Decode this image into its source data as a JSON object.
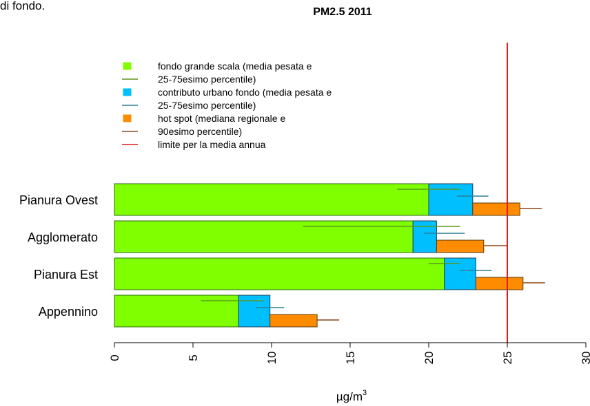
{
  "page_fragment_text": "di fondo.",
  "chart_data": {
    "type": "bar",
    "orientation": "horizontal",
    "stacked": true,
    "title": "PM2.5 2011",
    "xlabel": "µg/m",
    "xlabel_superscript": "3",
    "xlim": [
      0,
      30
    ],
    "xticks": [
      0,
      5,
      10,
      15,
      20,
      25,
      30
    ],
    "xtick_labels": [
      "0",
      "5",
      "10",
      "15",
      "20",
      "25",
      "30"
    ],
    "categories": [
      "Pianura Ovest",
      "Agglomerato",
      "Pianura Est",
      "Appennino"
    ],
    "series": [
      {
        "name": "fondo grande scala (media pesata e",
        "color": "#80FF00",
        "values": [
          20.0,
          19.0,
          21.0,
          7.9
        ],
        "percentile_range": [
          [
            18.0,
            22.0
          ],
          [
            12.0,
            22.0
          ],
          [
            20.0,
            22.0
          ],
          [
            5.5,
            9.5
          ]
        ]
      },
      {
        "name": "contributo urbano fondo (media pesata e",
        "color": "#00BFFF",
        "values": [
          2.8,
          1.5,
          2.0,
          2.0
        ],
        "percentile_range": [
          [
            21.8,
            23.8
          ],
          [
            19.7,
            22.3
          ],
          [
            22.0,
            24.0
          ],
          [
            9.0,
            10.8
          ]
        ]
      },
      {
        "name": "hot spot (mediana regionale e",
        "color": "#FF8C00",
        "values": [
          3.0,
          3.0,
          3.0,
          3.0
        ],
        "percentile_range": [
          [
            25.8,
            27.2
          ],
          [
            23.5,
            25.0
          ],
          [
            26.0,
            27.4
          ],
          [
            12.9,
            14.3
          ]
        ]
      }
    ],
    "reference_line": {
      "value": 25,
      "color": "#E41A1C",
      "label": "limite per la media annua"
    },
    "legend": {
      "placement": "top-left",
      "entries": [
        {
          "kind": "box",
          "color": "#80FF00",
          "text": "fondo grande scala (media pesata e"
        },
        {
          "kind": "line",
          "color": "#5A9A1A",
          "text": "25-75esimo percentile)"
        },
        {
          "kind": "box",
          "color": "#00BFFF",
          "text": "contributo urbano fondo (media pesata e"
        },
        {
          "kind": "line",
          "color": "#2E7F95",
          "text": "25-75esimo percentile)"
        },
        {
          "kind": "box",
          "color": "#FF8C00",
          "text": "hot spot (mediana regionale e"
        },
        {
          "kind": "line",
          "color": "#8B4513",
          "text": "90esimo percentile)"
        },
        {
          "kind": "line",
          "color": "#E41A1C",
          "text": "limite per la media annua"
        }
      ]
    },
    "whisker_colors": [
      "#5A9A1A",
      "#2E7F95",
      "#8B4513"
    ],
    "grid": false
  }
}
